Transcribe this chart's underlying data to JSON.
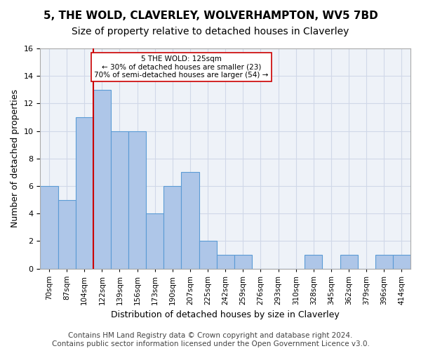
{
  "title": "5, THE WOLD, CLAVERLEY, WOLVERHAMPTON, WV5 7BD",
  "subtitle": "Size of property relative to detached houses in Claverley",
  "xlabel": "Distribution of detached houses by size in Claverley",
  "ylabel": "Number of detached properties",
  "bins": [
    "70sqm",
    "87sqm",
    "104sqm",
    "122sqm",
    "139sqm",
    "156sqm",
    "173sqm",
    "190sqm",
    "207sqm",
    "225sqm",
    "242sqm",
    "259sqm",
    "276sqm",
    "293sqm",
    "310sqm",
    "328sqm",
    "345sqm",
    "362sqm",
    "379sqm",
    "396sqm",
    "414sqm"
  ],
  "values": [
    6,
    5,
    11,
    13,
    10,
    10,
    4,
    6,
    7,
    2,
    1,
    1,
    0,
    0,
    0,
    1,
    0,
    1,
    0,
    1,
    1
  ],
  "bar_color": "#aec6e8",
  "bar_edge_color": "#5b9bd5",
  "vline_color": "#cc0000",
  "vline_x": 2.5,
  "annotation_text": "5 THE WOLD: 125sqm\n← 30% of detached houses are smaller (23)\n70% of semi-detached houses are larger (54) →",
  "annotation_box_color": "#ffffff",
  "annotation_box_edge": "#cc0000",
  "ylim": [
    0,
    16
  ],
  "yticks": [
    0,
    2,
    4,
    6,
    8,
    10,
    12,
    14,
    16
  ],
  "grid_color": "#d0d8e8",
  "background_color": "#eef2f8",
  "footer": "Contains HM Land Registry data © Crown copyright and database right 2024.\nContains public sector information licensed under the Open Government Licence v3.0.",
  "title_fontsize": 11,
  "subtitle_fontsize": 10,
  "xlabel_fontsize": 9,
  "ylabel_fontsize": 9,
  "footer_fontsize": 7.5
}
